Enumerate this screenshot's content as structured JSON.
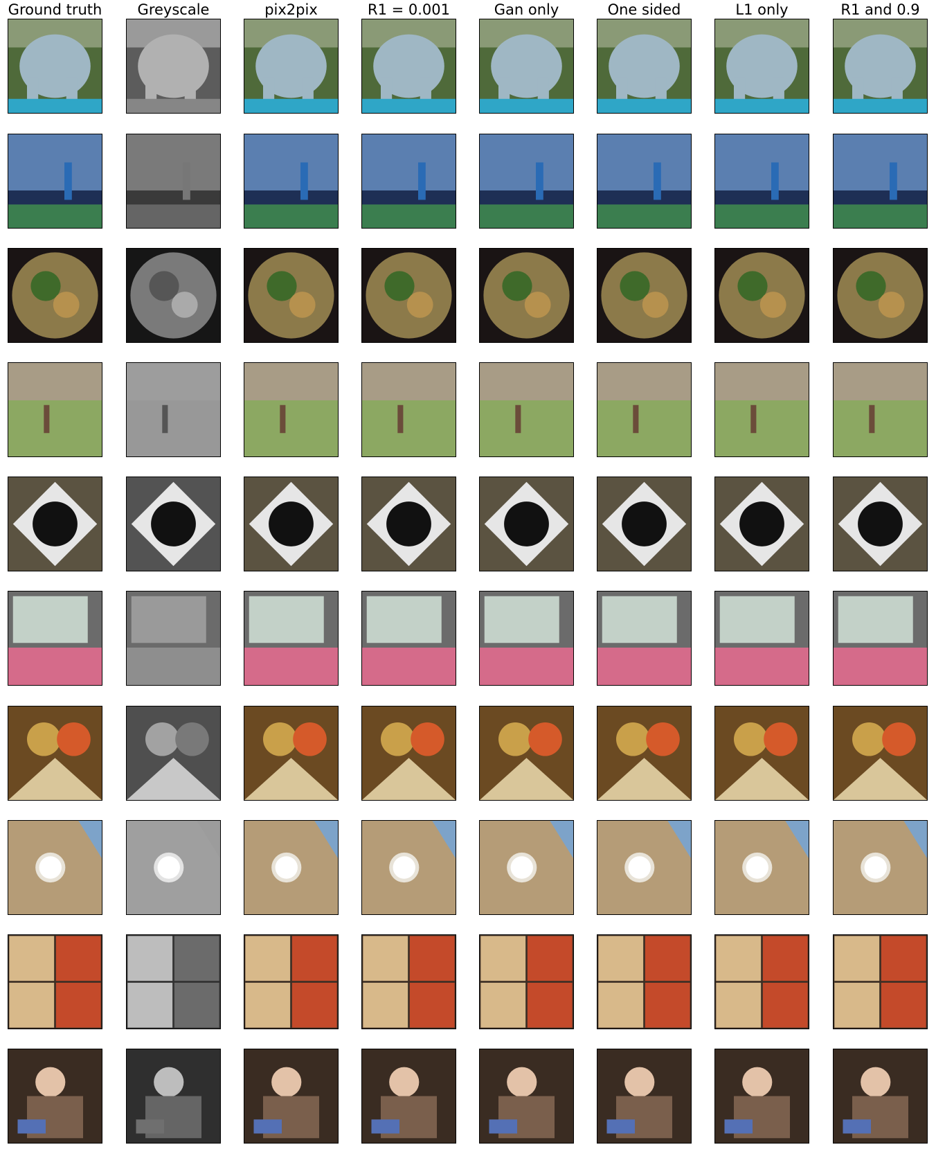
{
  "columns": [
    {
      "label": "Ground truth",
      "tone": "color"
    },
    {
      "label": "Greyscale",
      "tone": "grey"
    },
    {
      "label": "pix2pix",
      "tone": "color"
    },
    {
      "label": "R1 = 0.001",
      "tone": "color"
    },
    {
      "label": "Gan only",
      "tone": "color"
    },
    {
      "label": "One sided",
      "tone": "color"
    },
    {
      "label": "L1 only",
      "tone": "color"
    },
    {
      "label": "R1 and 0.9",
      "tone": "color"
    }
  ],
  "rows": [
    {
      "scene": "painted-elephant-statue",
      "colors": {
        "bg": "#4f6a3a",
        "main": "#9fb7c4",
        "accent": "#2fa6c7"
      }
    },
    {
      "scene": "tennis-player-stadium",
      "colors": {
        "bg": "#2e3f63",
        "main": "#5b7fb0",
        "accent": "#3b7e4f"
      }
    },
    {
      "scene": "noodle-plate",
      "colors": {
        "bg": "#1a1414",
        "main": "#8c7a4a",
        "accent": "#3f6a2a"
      }
    },
    {
      "scene": "child-on-grass-field",
      "colors": {
        "bg": "#6d8f4a",
        "main": "#8ca862",
        "accent": "#a89c86"
      }
    },
    {
      "scene": "black-cat-in-sink",
      "colors": {
        "bg": "#5b5341",
        "main": "#e6e6e6",
        "accent": "#111111"
      }
    },
    {
      "scene": "bus-window-passengers",
      "colors": {
        "bg": "#c9341f",
        "main": "#6b6b6b",
        "accent": "#d56b8a"
      }
    },
    {
      "scene": "figurines-and-food",
      "colors": {
        "bg": "#6b4a22",
        "main": "#c9a04a",
        "accent": "#d55a2a"
      }
    },
    {
      "scene": "clock-tower-building",
      "colors": {
        "bg": "#7da3c9",
        "main": "#b59c77",
        "accent": "#e8e3d8"
      }
    },
    {
      "scene": "food-collage",
      "colors": {
        "bg": "#3d2f25",
        "main": "#d8b98a",
        "accent": "#c44a2a"
      }
    },
    {
      "scene": "toddler-reading-book",
      "colors": {
        "bg": "#3a2c22",
        "main": "#7a5f4c",
        "accent": "#5470b5"
      }
    }
  ]
}
